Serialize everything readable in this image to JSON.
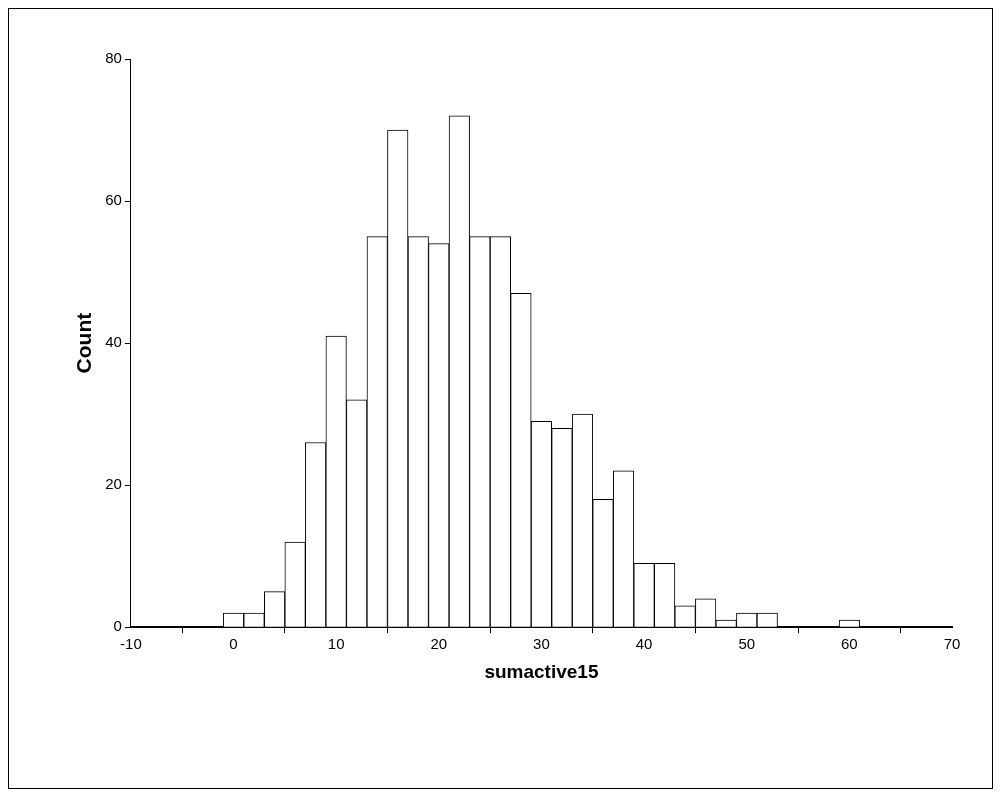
{
  "chart_data": {
    "type": "histogram",
    "xlabel": "sumactive15",
    "ylabel": "Count",
    "bins": [
      -1,
      1,
      3,
      5,
      7,
      9,
      11,
      13,
      15,
      17,
      19,
      21,
      23,
      25,
      27,
      29,
      31,
      33,
      35,
      37,
      39,
      41,
      43,
      45,
      47,
      49,
      51,
      53,
      55,
      57,
      59,
      61
    ],
    "values": [
      2,
      2,
      5,
      12,
      26,
      41,
      32,
      55,
      70,
      55,
      54,
      72,
      55,
      55,
      47,
      29,
      28,
      30,
      18,
      22,
      9,
      9,
      3,
      4,
      1,
      2,
      2,
      0,
      0,
      0,
      1
    ],
    "color": "#ffffff",
    "xlim": [
      -10,
      70
    ],
    "xticks": [
      -10,
      0,
      10,
      20,
      30,
      40,
      50,
      60,
      70
    ],
    "ylim": [
      0,
      80
    ],
    "yticks": [
      0,
      20,
      40,
      60,
      80
    ],
    "grid": false,
    "legend": false
  }
}
